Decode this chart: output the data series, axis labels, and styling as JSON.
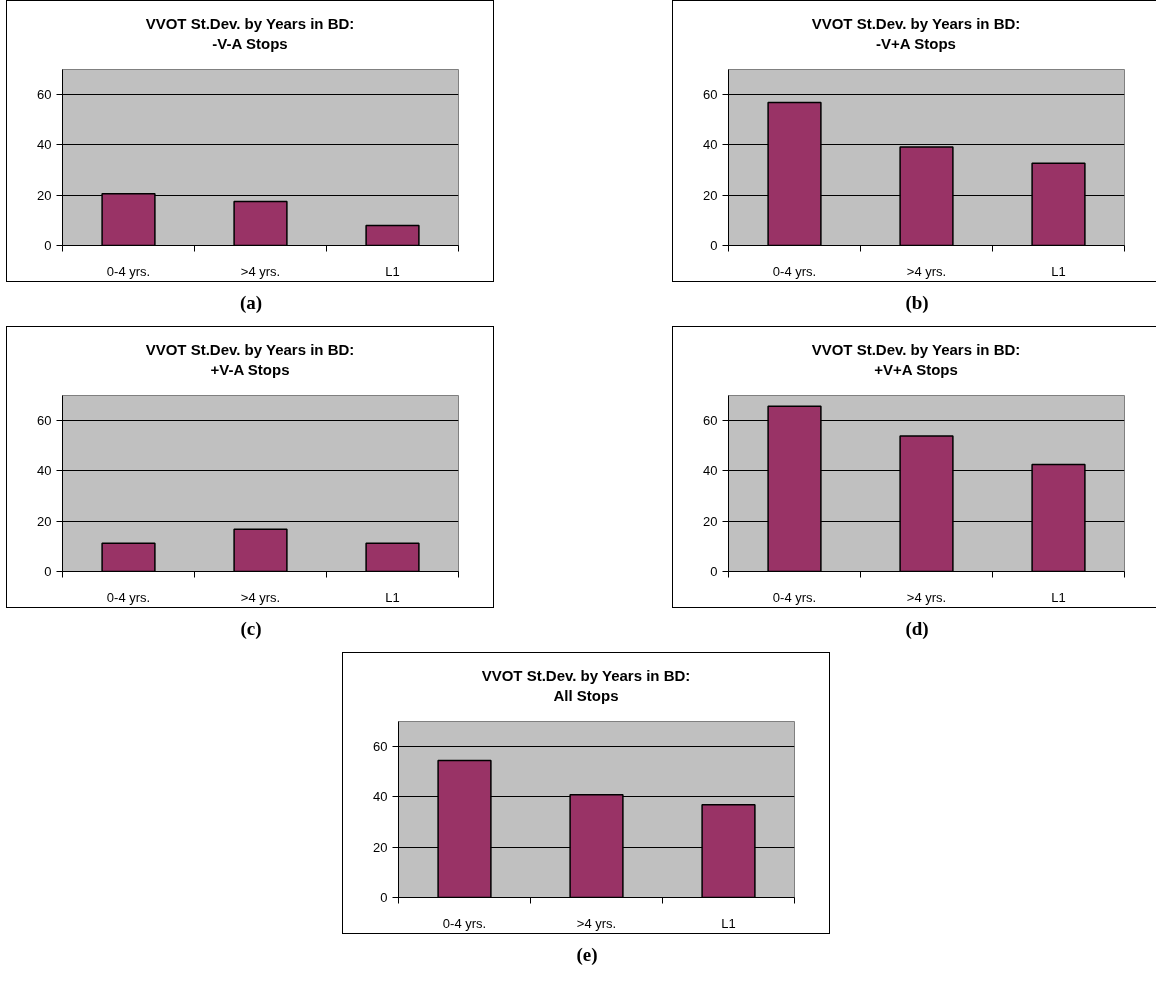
{
  "chart_data": [
    {
      "type": "bar",
      "title": "VVOT St.Dev. by Years in BD:\n-V-A Stops",
      "categories": [
        "0-4 yrs.",
        ">4 yrs.",
        "L1"
      ],
      "values": [
        20.6,
        17.5,
        8
      ],
      "color": "#993366",
      "ylim": [
        0,
        70
      ],
      "yticks": [
        0,
        20,
        40,
        60
      ],
      "grid": "y",
      "annotations": [
        "(a)"
      ]
    },
    {
      "type": "bar",
      "title": "VVOT St.Dev. by Years in BD:\n-V+A Stops",
      "categories": [
        "0-4 yrs.",
        ">4 yrs.",
        "L1"
      ],
      "values": [
        56.9,
        39.2,
        32.7
      ],
      "color": "#993366",
      "ylim": [
        0,
        70
      ],
      "yticks": [
        0,
        20,
        40,
        60
      ],
      "grid": "y",
      "annotations": [
        "(b)"
      ]
    },
    {
      "type": "bar",
      "title": "VVOT St.Dev. by Years in BD:\n+V-A Stops",
      "categories": [
        "0-4 yrs.",
        ">4 yrs.",
        "L1"
      ],
      "values": [
        11.2,
        16.8,
        11.2
      ],
      "color": "#993366",
      "ylim": [
        0,
        70
      ],
      "yticks": [
        0,
        20,
        40,
        60
      ],
      "grid": "y",
      "annotations": [
        "(c)"
      ]
    },
    {
      "type": "bar",
      "title": "VVOT St.Dev. by Years in BD:\n+V+A Stops",
      "categories": [
        "0-4 yrs.",
        ">4 yrs.",
        "L1"
      ],
      "values": [
        65.7,
        53.9,
        42.6
      ],
      "color": "#993366",
      "ylim": [
        0,
        70
      ],
      "yticks": [
        0,
        20,
        40,
        60
      ],
      "grid": "y",
      "annotations": [
        "(d)"
      ]
    },
    {
      "type": "bar",
      "title": "VVOT St.Dev. by Years in BD:\nAll Stops",
      "categories": [
        "0-4 yrs.",
        ">4 yrs.",
        "L1"
      ],
      "values": [
        54.5,
        40.9,
        36.9
      ],
      "color": "#993366",
      "ylim": [
        0,
        70
      ],
      "yticks": [
        0,
        20,
        40,
        60
      ],
      "grid": "y",
      "annotations": [
        "(e)"
      ]
    }
  ]
}
